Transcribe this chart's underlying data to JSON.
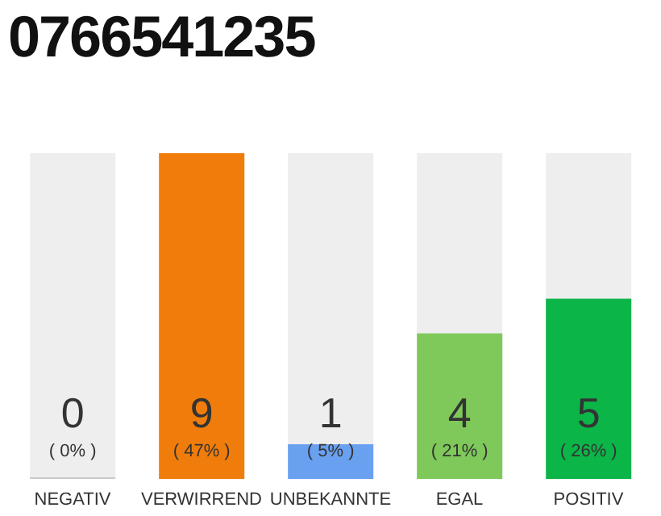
{
  "chart_data": {
    "type": "bar",
    "title": "0766541235",
    "categories": [
      "NEGATIV",
      "VERWIRREND",
      "UNBEKANNTE",
      "EGAL",
      "POSITIV"
    ],
    "values": [
      0,
      47,
      5,
      21,
      26
    ],
    "colors": [
      "#c8c8c8",
      "#f07d0b",
      "#6aa0f0",
      "#7ec95a",
      "#0bb548"
    ],
    "value_labels": [
      "( 0% )",
      "( 47% )",
      "( 5% )",
      "( 21% )",
      "( 26% )"
    ],
    "annotations": [
      "0",
      "9",
      "1",
      "4",
      "5"
    ]
  }
}
